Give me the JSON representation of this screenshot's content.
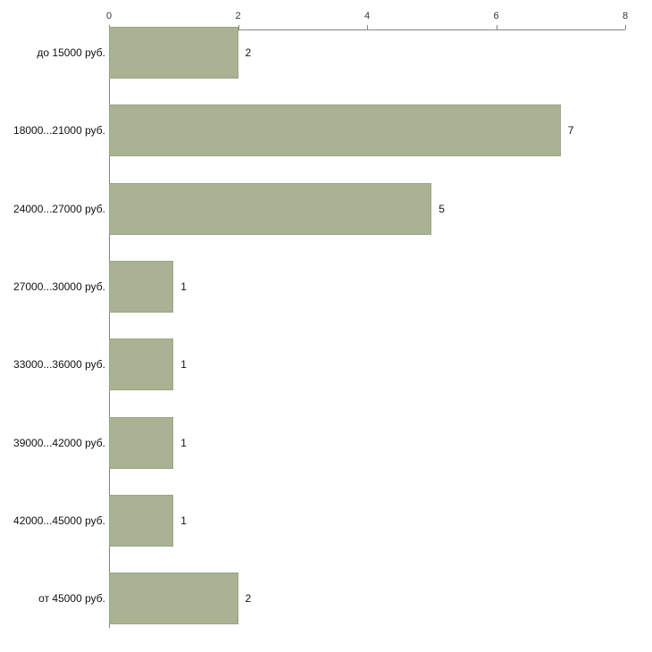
{
  "chart_data": {
    "type": "bar",
    "orientation": "horizontal",
    "title": "",
    "xlabel": "",
    "ylabel": "",
    "categories": [
      "до 15000 руб.",
      "18000...21000 руб.",
      "24000...27000 руб.",
      "27000...30000 руб.",
      "33000...36000 руб.",
      "39000...42000 руб.",
      "42000...45000 руб.",
      "от 45000 руб."
    ],
    "values": [
      2,
      7,
      5,
      1,
      1,
      1,
      1,
      2
    ],
    "value_labels": [
      "2",
      "7",
      "5",
      "1",
      "1",
      "1",
      "1",
      "2"
    ],
    "xlim": [
      0,
      8
    ],
    "x_ticks": [
      "0",
      "2",
      "4",
      "6",
      "8"
    ],
    "grid": false,
    "legend": false,
    "colors": {
      "bar_fill": "#a9b293",
      "bar_border": "#9aa584",
      "axis": "#848484",
      "text": "#111111"
    }
  }
}
